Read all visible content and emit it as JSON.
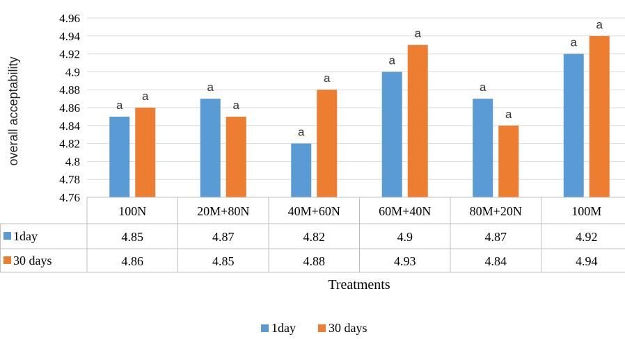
{
  "chart_data": {
    "type": "bar",
    "title": "",
    "xlabel": "Treatments",
    "ylabel": "overall acceptability",
    "ylim": [
      4.76,
      4.96
    ],
    "ytick_step": 0.02,
    "yticks": [
      "4.76",
      "4.78",
      "4.8",
      "4.82",
      "4.84",
      "4.86",
      "4.88",
      "4.9",
      "4.92",
      "4.94",
      "4.96"
    ],
    "grid": "horizontal",
    "legend_position": "bottom",
    "data_table": true,
    "categories": [
      "100N",
      "20M+80N",
      "40M+60N",
      "60M+40N",
      "80M+20N",
      "100M"
    ],
    "series": [
      {
        "name": "1day",
        "color": "#5B9BD5",
        "values": [
          4.85,
          4.87,
          4.82,
          4.9,
          4.87,
          4.92
        ],
        "display": [
          "4.85",
          "4.87",
          "4.82",
          "4.9",
          "4.87",
          "4.92"
        ],
        "letters": [
          "a",
          "a",
          "a",
          "a",
          "a",
          "a"
        ]
      },
      {
        "name": "30 days",
        "color": "#ED7D31",
        "values": [
          4.86,
          4.85,
          4.88,
          4.93,
          4.84,
          4.94
        ],
        "display": [
          "4.86",
          "4.85",
          "4.88",
          "4.93",
          "4.84",
          "4.94"
        ],
        "letters": [
          "a",
          "a",
          "a",
          "a",
          "a",
          "a"
        ]
      }
    ]
  }
}
